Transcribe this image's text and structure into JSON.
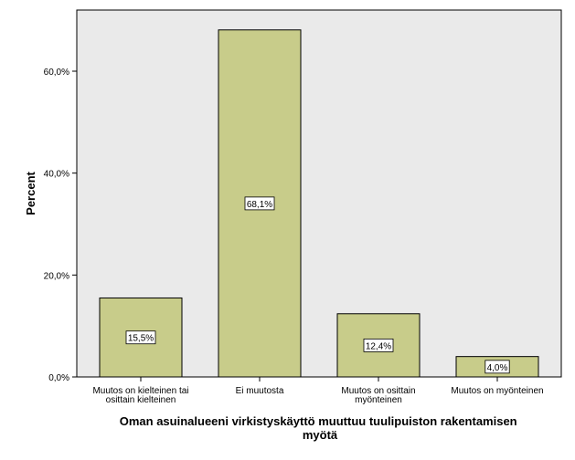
{
  "chart_data": {
    "type": "bar",
    "title": "",
    "xlabel": "Oman asuinalueeni virkistyskäyttö muuttuu tuulipuiston rakentamisen myötä",
    "xlabel_lines": [
      "Oman asuinalueeni virkistyskäyttö muuttuu tuulipuiston rakentamisen",
      "myötä"
    ],
    "ylabel": "Percent",
    "ylim": [
      0,
      72
    ],
    "yticks": [
      0,
      20,
      40,
      60
    ],
    "ytick_labels": [
      "0,0%",
      "20,0%",
      "40,0%",
      "60,0%"
    ],
    "categories": [
      [
        "Muutos on kielteinen tai",
        "osittain kielteinen"
      ],
      [
        "Ei muutosta"
      ],
      [
        "Muutos on osittain",
        "myönteinen"
      ],
      [
        "Muutos on myönteinen"
      ]
    ],
    "values": [
      15.5,
      68.1,
      12.4,
      4.0
    ],
    "value_labels": [
      "15,5%",
      "68,1%",
      "12,4%",
      "4,0%"
    ],
    "grid": false,
    "legend": "none",
    "colors": {
      "bar_fill": "#c8cc8a",
      "bar_stroke": "#000000",
      "plot_bg": "#eaeaea"
    }
  }
}
